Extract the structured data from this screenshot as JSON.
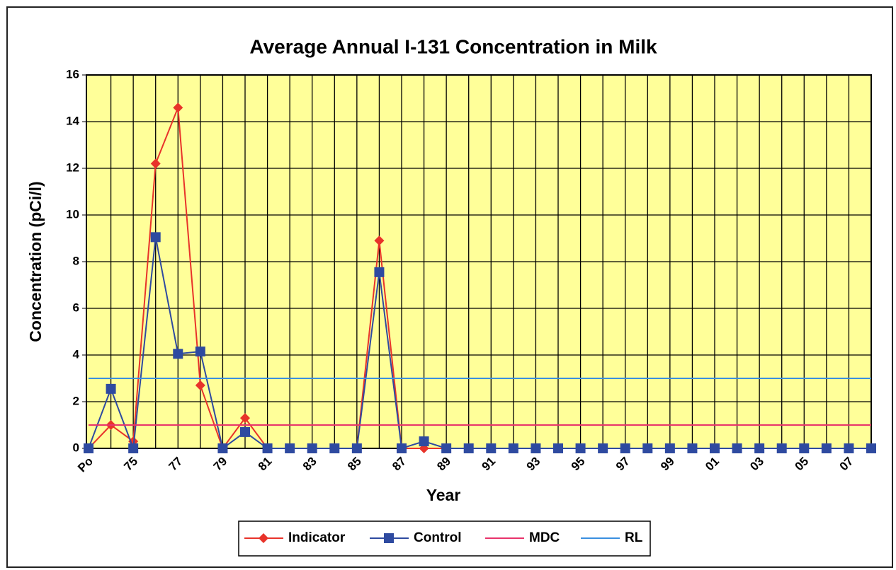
{
  "chart_data": {
    "type": "line",
    "title": "Average Annual I-131 Concentration in Milk",
    "x_label": "Year",
    "y_label": "Concentration (pCi/l)",
    "categories": [
      "Po",
      null,
      "75",
      null,
      "77",
      null,
      "79",
      null,
      "81",
      null,
      "83",
      null,
      "85",
      null,
      "87",
      null,
      "89",
      null,
      "91",
      null,
      "93",
      null,
      "95",
      null,
      "97",
      null,
      "99",
      null,
      "01",
      null,
      "03",
      null,
      "05",
      null,
      "07",
      null
    ],
    "series": [
      {
        "name": "Indicator",
        "color": "#e8332a",
        "marker": "diamond",
        "values": [
          0,
          1.0,
          0.3,
          12.2,
          14.6,
          2.7,
          0,
          1.3,
          0,
          0,
          0,
          0,
          0,
          8.9,
          0,
          0,
          0,
          0,
          0,
          0,
          0,
          0,
          0,
          0,
          0,
          0,
          0,
          0,
          0,
          0,
          0,
          0,
          0,
          0,
          0,
          0
        ]
      },
      {
        "name": "Control",
        "color": "#2e4aa0",
        "marker": "square",
        "values": [
          0,
          2.55,
          0,
          9.05,
          4.05,
          4.15,
          0,
          0.7,
          0,
          0,
          0,
          0,
          0,
          7.55,
          0,
          0.3,
          0,
          0,
          0,
          0,
          0,
          0,
          0,
          0,
          0,
          0,
          0,
          0,
          0,
          0,
          0,
          0,
          0,
          0,
          0,
          0
        ]
      },
      {
        "name": "MDC",
        "color": "#e8336b",
        "marker": "none",
        "values": [
          1,
          1,
          1,
          1,
          1,
          1,
          1,
          1,
          1,
          1,
          1,
          1,
          1,
          1,
          1,
          1,
          1,
          1,
          1,
          1,
          1,
          1,
          1,
          1,
          1,
          1,
          1,
          1,
          1,
          1,
          1,
          1,
          1,
          1,
          1,
          1
        ]
      },
      {
        "name": "RL",
        "color": "#3a8fe0",
        "marker": "none",
        "values": [
          3,
          3,
          3,
          3,
          3,
          3,
          3,
          3,
          3,
          3,
          3,
          3,
          3,
          3,
          3,
          3,
          3,
          3,
          3,
          3,
          3,
          3,
          3,
          3,
          3,
          3,
          3,
          3,
          3,
          3,
          3,
          3,
          3,
          3,
          3,
          3
        ]
      }
    ],
    "ylim": [
      0,
      16
    ],
    "yticks": [
      0,
      2,
      4,
      6,
      8,
      10,
      12,
      14,
      16
    ],
    "grid": true,
    "legend": "bottom"
  }
}
